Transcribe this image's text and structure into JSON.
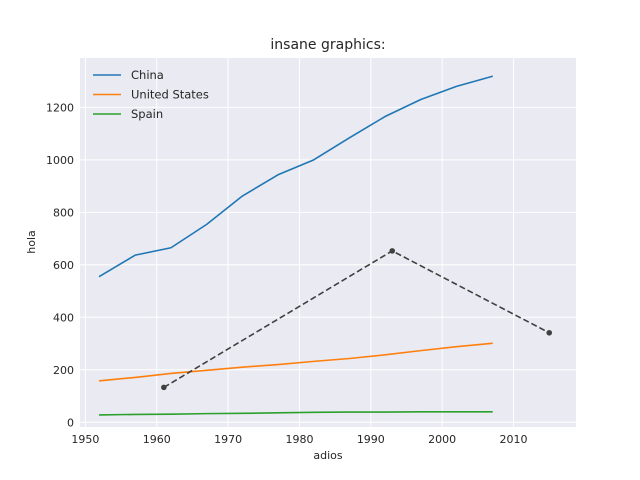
{
  "chart_data": {
    "type": "line",
    "title": "insane graphics:",
    "xlabel": "adios",
    "ylabel": "hola",
    "xlim": [
      1949.25,
      2018.75
    ],
    "ylim": [
      -18,
      1388
    ],
    "xticks": [
      1950,
      1960,
      1970,
      1980,
      1990,
      2000,
      2010
    ],
    "yticks": [
      0,
      200,
      400,
      600,
      800,
      1000,
      1200
    ],
    "grid": true,
    "legend_position": "top-left",
    "series": [
      {
        "name": "China",
        "color": "#1f77b4",
        "x": [
          1952,
          1957,
          1962,
          1967,
          1972,
          1977,
          1982,
          1987,
          1992,
          1997,
          2002,
          2007
        ],
        "y": [
          556,
          637,
          665,
          754,
          862,
          943,
          1000,
          1084,
          1165,
          1230,
          1280,
          1318
        ]
      },
      {
        "name": "United States",
        "color": "#ff7f0e",
        "x": [
          1952,
          1957,
          1962,
          1967,
          1972,
          1977,
          1982,
          1987,
          1992,
          1997,
          2002,
          2007
        ],
        "y": [
          158,
          171,
          186,
          198,
          210,
          220,
          232,
          243,
          257,
          273,
          288,
          301
        ]
      },
      {
        "name": "Spain",
        "color": "#2ca02c",
        "x": [
          1952,
          1957,
          1962,
          1967,
          1972,
          1977,
          1982,
          1987,
          1992,
          1997,
          2002,
          2007
        ],
        "y": [
          28,
          30,
          31,
          33,
          34,
          36,
          38,
          39,
          39,
          40,
          40,
          40
        ]
      }
    ],
    "extra_line": {
      "style": "dashed",
      "markers": true,
      "color": "#404040",
      "x": [
        1961,
        1993,
        2015
      ],
      "y": [
        133,
        653,
        341
      ]
    }
  }
}
